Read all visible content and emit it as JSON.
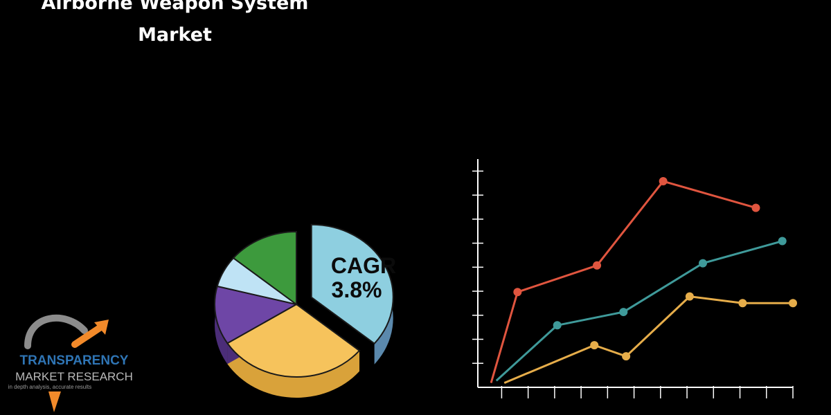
{
  "header": {
    "title_line1": "Airborne Weapon System",
    "title_line2": "Market"
  },
  "pie": {
    "label_line1": "CAGR",
    "label_line2": "3.8%",
    "slices": [
      {
        "fraction": 0.36,
        "color": "#8ecfe0",
        "side": "#5b89ad"
      },
      {
        "fraction": 0.3,
        "color": "#f6c35c",
        "side": "#d9a23a"
      },
      {
        "fraction": 0.13,
        "color": "#6e46a6",
        "side": "#4b2d78"
      },
      {
        "fraction": 0.07,
        "color": "#bfe3f5",
        "side": "#8fb6c9"
      },
      {
        "fraction": 0.14,
        "color": "#3d9a3d",
        "side": "#2a6f2a"
      }
    ]
  },
  "logo": {
    "name": "TRANSPARENCY",
    "subname": "MARKET RESEARCH",
    "tagline": "in depth analysis, accurate results"
  },
  "chart_data": {
    "type": "line",
    "x": [
      1,
      2,
      3,
      4,
      5,
      6,
      7,
      8,
      9,
      10,
      11,
      12
    ],
    "xlim": [
      0.5,
      12.4
    ],
    "ylim": [
      0,
      10.3
    ],
    "grid": false,
    "series": [
      {
        "color": "#e0553f",
        "points": [
          [
            1,
            0.2
          ],
          [
            2,
            4.3
          ],
          [
            5,
            5.5
          ],
          [
            7.5,
            9.3
          ],
          [
            11,
            8.1
          ]
        ]
      },
      {
        "color": "#3f9a9a",
        "points": [
          [
            1.2,
            0.3
          ],
          [
            3.5,
            2.8
          ],
          [
            6,
            3.4
          ],
          [
            9,
            5.6
          ],
          [
            12,
            6.6
          ]
        ]
      },
      {
        "color": "#e6ad4a",
        "points": [
          [
            1.5,
            0.2
          ],
          [
            4.9,
            1.9
          ],
          [
            6.1,
            1.4
          ],
          [
            8.5,
            4.1
          ],
          [
            10.5,
            3.8
          ],
          [
            12.4,
            3.8
          ]
        ]
      }
    ]
  }
}
